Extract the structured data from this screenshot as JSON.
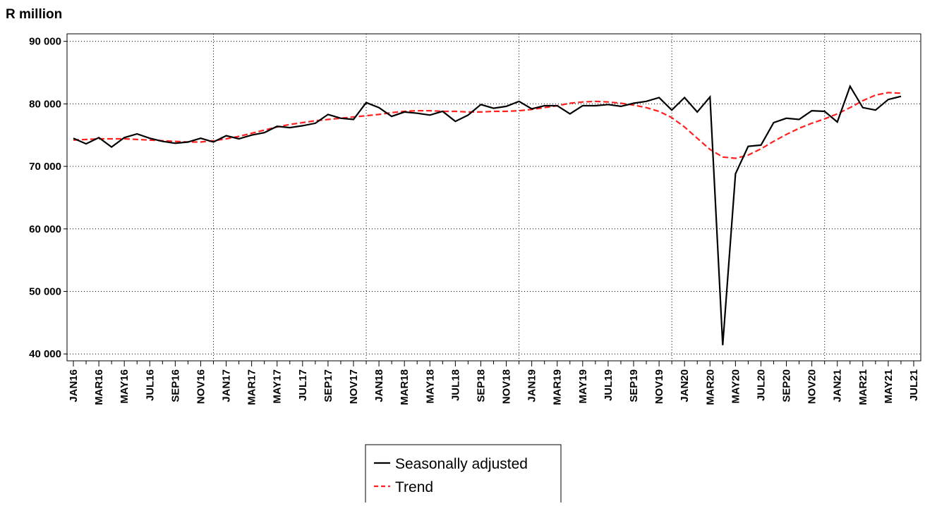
{
  "chart_data": {
    "type": "line",
    "y_label": "R million",
    "categories": [
      "JAN16",
      null,
      "MAR16",
      null,
      "MAY16",
      null,
      "JUL16",
      null,
      "SEP16",
      null,
      "NOV16",
      null,
      "JAN17",
      null,
      "MAR17",
      null,
      "MAY17",
      null,
      "JUL17",
      null,
      "SEP17",
      null,
      "NOV17",
      null,
      "JAN18",
      null,
      "MAR18",
      null,
      "MAY18",
      null,
      "JUL18",
      null,
      "SEP18",
      null,
      "NOV18",
      null,
      "JAN19",
      null,
      "MAR19",
      null,
      "MAY19",
      null,
      "JUL19",
      null,
      "SEP19",
      null,
      "NOV19",
      null,
      "JAN20",
      null,
      "MAR20",
      null,
      "MAY20",
      null,
      "JUL20",
      null,
      "SEP20",
      null,
      "NOV20",
      null,
      "JAN21",
      null,
      "MAR21",
      null,
      "MAY21",
      null,
      "JUL21"
    ],
    "series": [
      {
        "name": "Seasonally adjusted",
        "color": "#000000",
        "dash": false,
        "values": [
          74500,
          73600,
          74600,
          73100,
          74600,
          75200,
          74500,
          74000,
          73700,
          73900,
          74500,
          73900,
          74900,
          74400,
          75000,
          75400,
          76400,
          76200,
          76500,
          76900,
          78300,
          77700,
          77500,
          80200,
          79400,
          78000,
          78700,
          78500,
          78200,
          78800,
          77200,
          78200,
          79900,
          79300,
          79600,
          80400,
          79200,
          79700,
          79700,
          78400,
          79700,
          79700,
          79900,
          79600,
          80100,
          80400,
          81000,
          79000,
          81000,
          78700,
          81100,
          41400,
          68800,
          73200,
          73400,
          77000,
          77700,
          77500,
          78900,
          78800,
          77100,
          82800,
          79400,
          79000,
          80700,
          81200,
          null
        ]
      },
      {
        "name": "Trend",
        "color": "#ff2020",
        "dash": true,
        "values": [
          74200,
          74300,
          74400,
          74400,
          74400,
          74300,
          74200,
          74100,
          74000,
          73900,
          73900,
          74100,
          74400,
          74800,
          75300,
          75800,
          76300,
          76700,
          77000,
          77300,
          77500,
          77700,
          77900,
          78100,
          78300,
          78600,
          78800,
          78900,
          78900,
          78800,
          78800,
          78700,
          78700,
          78800,
          78800,
          78900,
          79100,
          79400,
          79700,
          80100,
          80300,
          80400,
          80300,
          80100,
          79800,
          79400,
          78800,
          77800,
          76300,
          74500,
          72700,
          71500,
          71300,
          71800,
          72800,
          74000,
          75100,
          76100,
          76900,
          77600,
          78400,
          79400,
          80500,
          81400,
          81800,
          81700,
          null
        ]
      }
    ],
    "ylim": [
      38900,
      91200
    ],
    "yticks": [
      {
        "value": 40000,
        "label": "40 000"
      },
      {
        "value": 50000,
        "label": "50 000"
      },
      {
        "value": 60000,
        "label": "60 000"
      },
      {
        "value": 70000,
        "label": "70 000"
      },
      {
        "value": 80000,
        "label": "80 000"
      },
      {
        "value": 90000,
        "label": "90 000"
      }
    ],
    "grid": true
  }
}
